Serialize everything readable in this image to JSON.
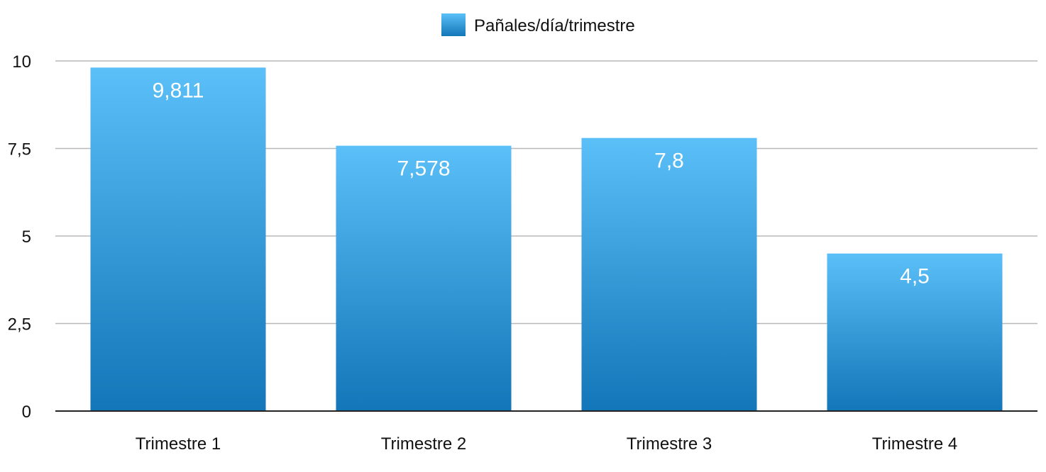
{
  "chart_data": {
    "type": "bar",
    "categories": [
      "Trimestre 1",
      "Trimestre 2",
      "Trimestre 3",
      "Trimestre 4"
    ],
    "series": [
      {
        "name": "Pañales/día/trimestre",
        "values": [
          9.811,
          7.578,
          7.8,
          4.5
        ]
      }
    ],
    "data_labels": [
      "9,811",
      "7,578",
      "7,8",
      "4,5"
    ],
    "y_ticks": [
      0,
      2.5,
      5,
      7.5,
      10
    ],
    "y_tick_labels": [
      "0",
      "2,5",
      "5",
      "7,5",
      "10"
    ],
    "ylim": [
      0,
      10
    ],
    "grid": true,
    "legend_position": "top-center",
    "colors": {
      "bar_top": "#5bbff8",
      "bar_bottom": "#1276b8",
      "grid": "#b8b8b8",
      "axis": "#222222"
    }
  }
}
